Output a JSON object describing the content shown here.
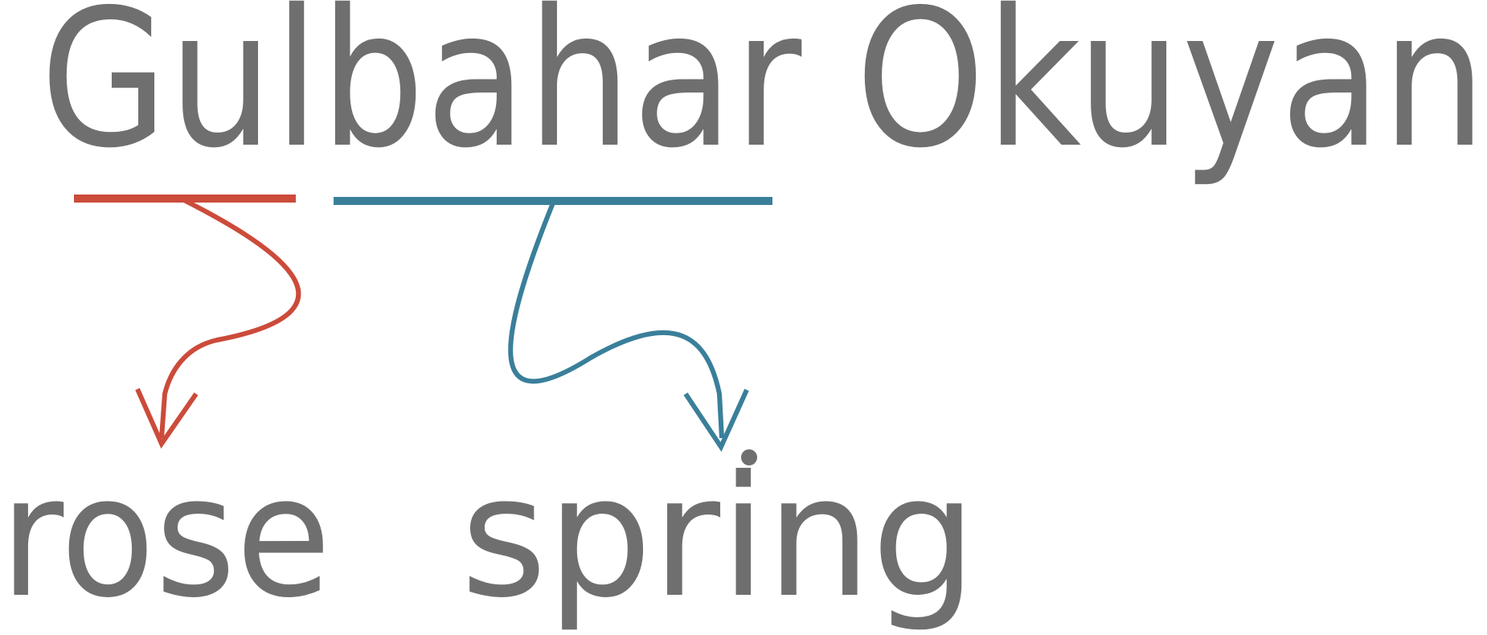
{
  "name": "Gulbahar Okuyan",
  "words": {
    "first": "rose",
    "second": "spring"
  },
  "colors": {
    "text": "#6f6f6f",
    "first_part": "#cc4b3a",
    "second_part": "#3a7f9a"
  },
  "icons": {
    "first_arrow": "curved-arrow-down",
    "second_arrow": "curved-arrow-down"
  }
}
